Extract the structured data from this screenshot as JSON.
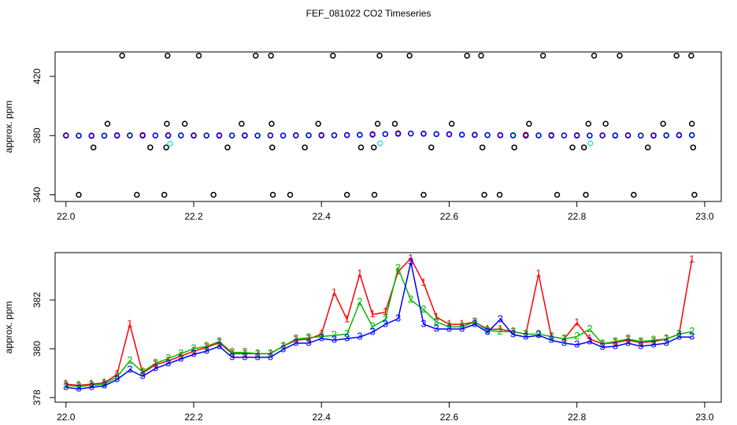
{
  "title": "FEF_081022  CO2 Timeseries",
  "chart_data": [
    {
      "type": "scatter",
      "ylabel": "approx. ppm",
      "xlim": [
        21.983,
        23.026
      ],
      "ylim": [
        335.5,
        436.5
      ],
      "xticks": [
        {
          "value": 22,
          "label": "22.0"
        },
        {
          "value": 22.2,
          "label": "22.2"
        },
        {
          "value": 22.4,
          "label": "22.4"
        },
        {
          "value": 22.6,
          "label": "22.6"
        },
        {
          "value": 22.8,
          "label": "22.8"
        },
        {
          "value": 23,
          "label": "23.0"
        }
      ],
      "yticks": [
        340,
        380,
        420
      ],
      "series": [
        {
          "color": "#000000",
          "x": [
            22.088,
            22.159,
            22.208,
            22.297,
            22.321,
            22.418,
            22.491,
            22.538,
            22.628,
            22.65,
            22.747,
            22.827,
            22.867,
            22.956,
            22.979,
            22.02,
            22.111,
            22.154,
            22.231,
            22.324,
            22.351,
            22.44,
            22.483,
            22.56,
            22.655,
            22.679,
            22.769,
            22.814,
            22.889,
            22.984,
            22.065,
            22.158,
            22.186,
            22.275,
            22.322,
            22.395,
            22.488,
            22.515,
            22.604,
            22.725,
            22.818,
            22.845,
            22.935,
            22.98,
            22.043,
            22.132,
            22.157,
            22.253,
            22.323,
            22.374,
            22.462,
            22.482,
            22.572,
            22.652,
            22.702,
            22.793,
            22.811,
            22.911,
            22.982
          ],
          "values": [
            434,
            434,
            434,
            434,
            434,
            434,
            434,
            434,
            434,
            434,
            434,
            434,
            434,
            434,
            434,
            340,
            340,
            340,
            340,
            340,
            340,
            340,
            340,
            340,
            340,
            340,
            340,
            340,
            340,
            340,
            388,
            388,
            388,
            388,
            388,
            388,
            388,
            388,
            388,
            388,
            388,
            388,
            388,
            388,
            372,
            372,
            372,
            372,
            372,
            372,
            372,
            372,
            372,
            372,
            372,
            372,
            372,
            372,
            372
          ]
        },
        {
          "color": "#ff0000",
          "x": [
            22,
            22.04,
            22.08,
            22.12,
            22.16,
            22.2,
            22.24,
            22.28,
            22.32,
            22.36,
            22.4,
            22.44,
            22.48,
            22.52,
            22.56,
            22.6,
            22.64,
            22.68,
            22.72,
            22.76,
            22.8,
            22.84,
            22.88,
            22.92,
            22.96
          ],
          "values": [
            380.2,
            380.1,
            380.3,
            380.4,
            380.3,
            380.2,
            380.3,
            380.2,
            380.2,
            380.3,
            380.4,
            380.5,
            381.0,
            381.6,
            381.4,
            381.0,
            380.6,
            380.4,
            380.6,
            380.4,
            380.3,
            380.2,
            380.3,
            380.2,
            380.5
          ]
        },
        {
          "color": "#00bb00",
          "x": [
            22.02,
            22.06,
            22.1,
            22.14,
            22.18,
            22.22,
            22.26,
            22.3,
            22.34,
            22.38,
            22.42,
            22.46,
            22.5,
            22.54,
            22.58,
            22.62,
            22.66,
            22.7,
            22.74,
            22.78,
            22.82,
            22.86,
            22.9,
            22.94,
            22.98
          ],
          "values": [
            380.1,
            380.0,
            380.2,
            380.1,
            380.2,
            380.0,
            380.1,
            380.0,
            380.1,
            380.2,
            380.3,
            380.6,
            381.0,
            381.4,
            381.0,
            380.6,
            380.4,
            380.3,
            380.2,
            380.1,
            380.1,
            380.2,
            380.1,
            380.3,
            380.4
          ]
        },
        {
          "color": "#0000ff",
          "x": [
            22,
            22.02,
            22.04,
            22.06,
            22.08,
            22.1,
            22.12,
            22.14,
            22.16,
            22.18,
            22.2,
            22.22,
            22.24,
            22.26,
            22.28,
            22.3,
            22.32,
            22.34,
            22.36,
            22.38,
            22.4,
            22.42,
            22.44,
            22.46,
            22.48,
            22.5,
            22.52,
            22.54,
            22.56,
            22.58,
            22.6,
            22.62,
            22.64,
            22.66,
            22.68,
            22.7,
            22.72,
            22.74,
            22.76,
            22.78,
            22.8,
            22.82,
            22.84,
            22.86,
            22.88,
            22.9,
            22.92,
            22.94,
            22.96,
            22.98
          ],
          "values": [
            380,
            379.9,
            379.8,
            379.9,
            380,
            380.1,
            380,
            380.1,
            380,
            380.1,
            380,
            380.1,
            380,
            380.1,
            380,
            380,
            380.1,
            380,
            380.1,
            380.2,
            380.1,
            380.2,
            380.3,
            380.4,
            380.6,
            381,
            381.2,
            381.4,
            381.2,
            381,
            380.8,
            380.6,
            380.4,
            380.3,
            380.2,
            380.1,
            380,
            380.1,
            380,
            380.1,
            380,
            380,
            380.1,
            380,
            380.1,
            380,
            380,
            380.1,
            380.2,
            380.3
          ]
        },
        {
          "color": "#40e0e0",
          "x": [
            22.163,
            22.492,
            22.821
          ],
          "values": [
            374.5,
            374.8,
            374.8
          ]
        }
      ]
    },
    {
      "type": "line",
      "ylabel": "approx. ppm",
      "xlim": [
        21.983,
        23.026
      ],
      "ylim": [
        377.81,
        383.94
      ],
      "xticks": [
        {
          "value": 22,
          "label": "22.0"
        },
        {
          "value": 22.2,
          "label": "22.2"
        },
        {
          "value": 22.4,
          "label": "22.4"
        },
        {
          "value": 22.6,
          "label": "22.6"
        },
        {
          "value": 22.8,
          "label": "22.8"
        },
        {
          "value": 23,
          "label": "23.0"
        }
      ],
      "yticks": [
        378,
        380,
        382
      ],
      "x": [
        22,
        22.02,
        22.04,
        22.06,
        22.08,
        22.1,
        22.12,
        22.14,
        22.16,
        22.18,
        22.2,
        22.22,
        22.24,
        22.26,
        22.28,
        22.3,
        22.32,
        22.34,
        22.36,
        22.38,
        22.4,
        22.42,
        22.44,
        22.46,
        22.48,
        22.5,
        22.52,
        22.54,
        22.56,
        22.58,
        22.6,
        22.62,
        22.64,
        22.66,
        22.68,
        22.7,
        22.72,
        22.74,
        22.76,
        22.78,
        22.8,
        22.82,
        22.84,
        22.86,
        22.88,
        22.9,
        22.92,
        22.94,
        22.96,
        22.98
      ],
      "series": [
        {
          "name": "1",
          "color": "#ff0000",
          "values": [
            378.55,
            378.5,
            378.55,
            378.6,
            378.95,
            381.0,
            379.0,
            379.35,
            379.5,
            379.7,
            379.9,
            380.05,
            380.25,
            379.8,
            379.8,
            379.8,
            379.8,
            380.1,
            380.35,
            380.4,
            380.6,
            382.3,
            381.2,
            383.06,
            381.4,
            381.5,
            383.16,
            383.7,
            382.7,
            381.3,
            381.0,
            381.0,
            381.1,
            380.8,
            380.8,
            380.7,
            380.6,
            383.06,
            380.5,
            380.4,
            381.06,
            380.4,
            380.2,
            380.25,
            380.35,
            380.25,
            380.3,
            380.4,
            380.6,
            383.65
          ]
        },
        {
          "name": "2",
          "color": "#00bb00",
          "values": [
            378.5,
            378.45,
            378.5,
            378.55,
            378.85,
            379.5,
            379.05,
            379.4,
            379.6,
            379.8,
            380.0,
            380.1,
            380.3,
            379.85,
            379.85,
            379.8,
            379.8,
            380.1,
            380.4,
            380.45,
            380.5,
            380.55,
            380.6,
            381.9,
            380.9,
            381.2,
            383.3,
            382.0,
            381.6,
            381.1,
            380.9,
            380.9,
            381.1,
            380.75,
            380.7,
            380.7,
            380.6,
            380.6,
            380.5,
            380.4,
            380.5,
            380.8,
            380.2,
            380.3,
            380.4,
            380.3,
            380.35,
            380.4,
            380.6,
            380.7
          ]
        },
        {
          "name": "3",
          "color": "#0000ff",
          "values": [
            378.42,
            378.35,
            378.42,
            378.48,
            378.74,
            379.13,
            378.87,
            379.19,
            379.39,
            379.58,
            379.77,
            379.9,
            380.1,
            379.65,
            379.65,
            379.65,
            379.65,
            379.97,
            380.23,
            380.23,
            380.42,
            380.35,
            380.42,
            380.48,
            380.68,
            381.0,
            381.23,
            383.55,
            381.0,
            380.81,
            380.81,
            380.81,
            381.0,
            380.68,
            381.2,
            380.58,
            380.48,
            380.55,
            380.35,
            380.23,
            380.16,
            380.29,
            380.06,
            380.1,
            380.23,
            380.1,
            380.16,
            380.23,
            380.48,
            380.48
          ]
        }
      ]
    }
  ]
}
